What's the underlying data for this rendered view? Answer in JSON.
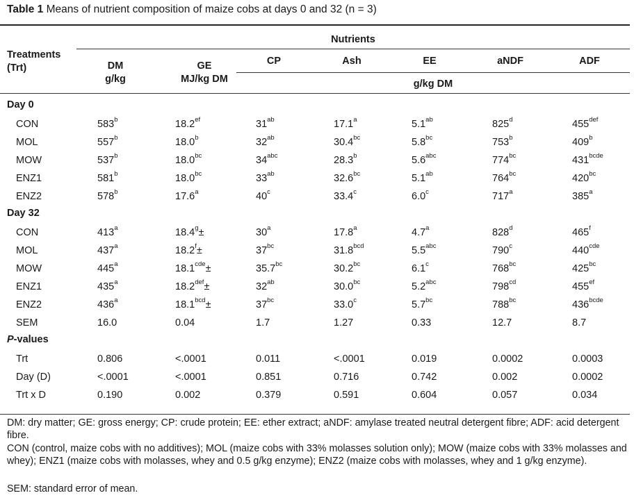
{
  "caption": {
    "label": "Table 1",
    "text": " Means of nutrient composition of maize cobs at days 0 and 32 (n = 3)"
  },
  "header": {
    "treatments_line1": "Treatments",
    "treatments_line2": "(Trt)",
    "nutrients": "Nutrients",
    "units_dm": "g/kg DM",
    "columns": [
      {
        "name": "DM",
        "unit": "g/kg"
      },
      {
        "name": "GE",
        "unit": "MJ/kg DM"
      },
      {
        "name": "CP",
        "unit": ""
      },
      {
        "name": "Ash",
        "unit": ""
      },
      {
        "name": "EE",
        "unit": ""
      },
      {
        "name": "aNDF",
        "unit": ""
      },
      {
        "name": "ADF",
        "unit": ""
      }
    ]
  },
  "sections": [
    {
      "title": "Day 0",
      "rows": [
        {
          "label": "CON",
          "cells": [
            {
              "v": "583",
              "s": "b"
            },
            {
              "v": "18.2",
              "s": "ef"
            },
            {
              "v": "31",
              "s": "ab"
            },
            {
              "v": "17.1",
              "s": "a"
            },
            {
              "v": "5.1",
              "s": "ab"
            },
            {
              "v": "825",
              "s": "d"
            },
            {
              "v": "455",
              "s": "def"
            }
          ]
        },
        {
          "label": "MOL",
          "cells": [
            {
              "v": "557",
              "s": "b"
            },
            {
              "v": "18.0",
              "s": "b"
            },
            {
              "v": "32",
              "s": "ab"
            },
            {
              "v": "30.4",
              "s": "bc"
            },
            {
              "v": "5.8",
              "s": "bc"
            },
            {
              "v": "753",
              "s": "b"
            },
            {
              "v": "409",
              "s": "b"
            }
          ]
        },
        {
          "label": "MOW",
          "cells": [
            {
              "v": "537",
              "s": "b"
            },
            {
              "v": "18.0",
              "s": "bc"
            },
            {
              "v": "34",
              "s": "abc"
            },
            {
              "v": "28.3",
              "s": "b"
            },
            {
              "v": "5.6",
              "s": "abc"
            },
            {
              "v": "774",
              "s": "bc"
            },
            {
              "v": "431",
              "s": "bcde"
            }
          ]
        },
        {
          "label": "ENZ1",
          "cells": [
            {
              "v": "581",
              "s": "b"
            },
            {
              "v": "18.0",
              "s": "bc"
            },
            {
              "v": "33",
              "s": "ab"
            },
            {
              "v": "32.6",
              "s": "bc"
            },
            {
              "v": "5.1",
              "s": "ab"
            },
            {
              "v": "764",
              "s": "bc"
            },
            {
              "v": "420",
              "s": "bc"
            }
          ]
        },
        {
          "label": "ENZ2",
          "cells": [
            {
              "v": "578",
              "s": "b"
            },
            {
              "v": "17.6",
              "s": "a"
            },
            {
              "v": "40",
              "s": "c"
            },
            {
              "v": "33.4",
              "s": "c"
            },
            {
              "v": "6.0",
              "s": "c"
            },
            {
              "v": "717",
              "s": "a"
            },
            {
              "v": "385",
              "s": "a"
            }
          ]
        }
      ]
    },
    {
      "title": "Day 32",
      "rows": [
        {
          "label": "CON",
          "cells": [
            {
              "v": "413",
              "s": "a"
            },
            {
              "v": "18.4",
              "s": "g",
              "t": "±"
            },
            {
              "v": "30",
              "s": "a"
            },
            {
              "v": "17.8",
              "s": "a"
            },
            {
              "v": "4.7",
              "s": "a"
            },
            {
              "v": "828",
              "s": "d"
            },
            {
              "v": "465",
              "s": "f"
            }
          ]
        },
        {
          "label": "MOL",
          "cells": [
            {
              "v": "437",
              "s": "a"
            },
            {
              "v": "18.2",
              "s": "f",
              "t": "±"
            },
            {
              "v": "37",
              "s": "bc"
            },
            {
              "v": "31.8",
              "s": "bcd"
            },
            {
              "v": "5.5",
              "s": "abc"
            },
            {
              "v": "790",
              "s": "c"
            },
            {
              "v": "440",
              "s": "cde"
            }
          ]
        },
        {
          "label": "MOW",
          "cells": [
            {
              "v": "445",
              "s": "a"
            },
            {
              "v": "18.1",
              "s": "cde",
              "t": "±"
            },
            {
              "v": "35.7",
              "s": "bc"
            },
            {
              "v": "30.2",
              "s": "bc"
            },
            {
              "v": "6.1",
              "s": "c"
            },
            {
              "v": "768",
              "s": "bc"
            },
            {
              "v": "425",
              "s": "bc"
            }
          ]
        },
        {
          "label": "ENZ1",
          "cells": [
            {
              "v": "435",
              "s": "a"
            },
            {
              "v": "18.2",
              "s": "def",
              "t": "±"
            },
            {
              "v": "32",
              "s": "ab"
            },
            {
              "v": "30.0",
              "s": "bc"
            },
            {
              "v": "5.2",
              "s": "abc"
            },
            {
              "v": "798",
              "s": "cd"
            },
            {
              "v": "455",
              "s": "ef"
            }
          ]
        },
        {
          "label": "ENZ2",
          "cells": [
            {
              "v": "436",
              "s": "a"
            },
            {
              "v": "18.1",
              "s": "bcd",
              "t": "±"
            },
            {
              "v": "37",
              "s": "bc"
            },
            {
              "v": "33.0",
              "s": "c"
            },
            {
              "v": "5.7",
              "s": "bc"
            },
            {
              "v": "788",
              "s": "bc"
            },
            {
              "v": "436",
              "s": "bcde"
            }
          ]
        },
        {
          "label": "SEM",
          "cells": [
            {
              "v": "16.0"
            },
            {
              "v": "0.04"
            },
            {
              "v": "1.7"
            },
            {
              "v": "1.27"
            },
            {
              "v": "0.33"
            },
            {
              "v": "12.7"
            },
            {
              "v": "8.7"
            }
          ]
        }
      ]
    },
    {
      "title": "P-values",
      "title_italic": "P",
      "title_rest": "-values",
      "rows": [
        {
          "label": "Trt",
          "cells": [
            {
              "v": "0.806"
            },
            {
              "v": "<.0001"
            },
            {
              "v": "0.011"
            },
            {
              "v": "<.0001"
            },
            {
              "v": "0.019"
            },
            {
              "v": "0.0002"
            },
            {
              "v": "0.0003"
            }
          ]
        },
        {
          "label": "Day (D)",
          "cells": [
            {
              "v": "<.0001"
            },
            {
              "v": "<.0001"
            },
            {
              "v": "0.851"
            },
            {
              "v": "0.716"
            },
            {
              "v": "0.742"
            },
            {
              "v": "0.002"
            },
            {
              "v": "0.0002"
            }
          ]
        },
        {
          "label": "Trt x D",
          "cells": [
            {
              "v": "0.190"
            },
            {
              "v": "0.002"
            },
            {
              "v": "0.379"
            },
            {
              "v": "0.591"
            },
            {
              "v": "0.604"
            },
            {
              "v": "0.057"
            },
            {
              "v": "0.034"
            }
          ]
        }
      ]
    }
  ],
  "footnotes": [
    "DM: dry matter; GE: gross energy; CP: crude protein; EE: ether extract; aNDF: amylase treated neutral detergent fibre; ADF: acid detergent fibre.",
    "CON (control, maize cobs with no additives); MOL (maize cobs with 33% molasses solution only); MOW (maize cobs with 33% molasses and whey); ENZ1 (maize cobs with molasses, whey and 0.5 g/kg enzyme); ENZ2 (maize cobs with molasses, whey and 1 g/kg enzyme).",
    "SEM: standard error of mean."
  ]
}
